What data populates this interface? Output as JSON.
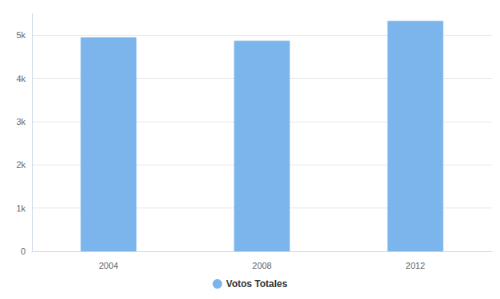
{
  "chart_data": {
    "type": "bar",
    "categories": [
      "2004",
      "2008",
      "2012"
    ],
    "series": [
      {
        "name": "Votos Totales",
        "color": "#7cb5ec",
        "values": [
          4950,
          4870,
          5330
        ]
      }
    ],
    "ylim": [
      0,
      5500
    ],
    "yticks": [
      0,
      {
        "value": 1000,
        "label": "1k"
      },
      {
        "value": 2000,
        "label": "2k"
      },
      {
        "value": 3000,
        "label": "3k"
      },
      {
        "value": 4000,
        "label": "4k"
      },
      {
        "value": 5000,
        "label": "5k"
      }
    ],
    "grid": true,
    "legend": "bottom"
  }
}
